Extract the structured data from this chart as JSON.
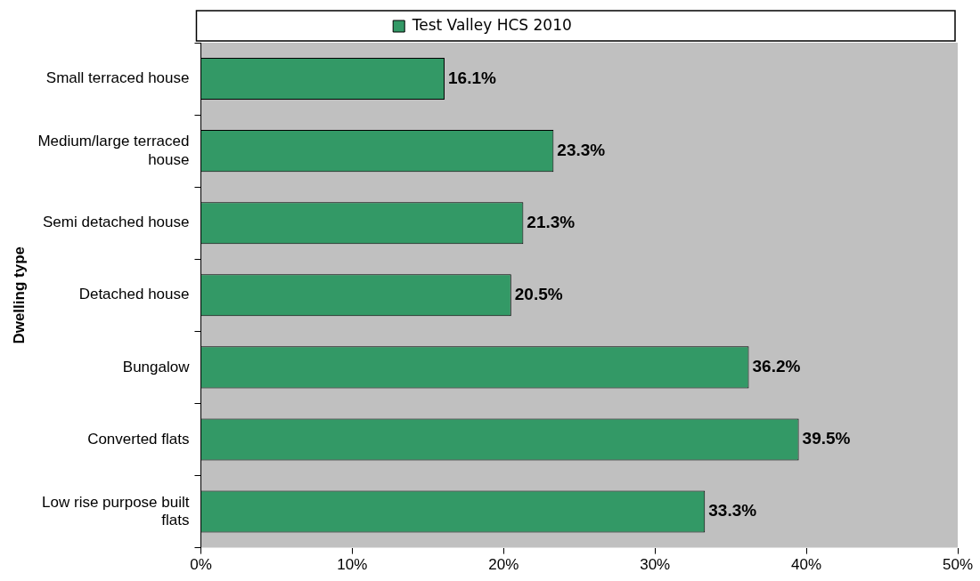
{
  "chart_data": {
    "type": "bar",
    "orientation": "horizontal",
    "ylabel": "Dwelling type",
    "categories": [
      "Small terraced house",
      "Medium/large terraced house",
      "Semi detached house",
      "Detached house",
      "Bungalow",
      "Converted flats",
      "Low rise purpose built flats"
    ],
    "series": [
      {
        "name": "Test Valley HCS 2010",
        "color": "#339966",
        "values": [
          16.1,
          23.3,
          21.3,
          20.5,
          36.2,
          39.5,
          33.3
        ]
      }
    ],
    "value_labels": [
      "16.1%",
      "23.3%",
      "21.3%",
      "20.5%",
      "36.2%",
      "39.5%",
      "33.3%"
    ],
    "xlim": [
      0,
      50
    ],
    "xticks": [
      {
        "value": 0,
        "label": "0%"
      },
      {
        "value": 10,
        "label": "10%"
      },
      {
        "value": 20,
        "label": "20%"
      },
      {
        "value": 30,
        "label": "30%"
      },
      {
        "value": 40,
        "label": "40%"
      },
      {
        "value": 50,
        "label": "50%"
      }
    ],
    "legend": "top"
  }
}
